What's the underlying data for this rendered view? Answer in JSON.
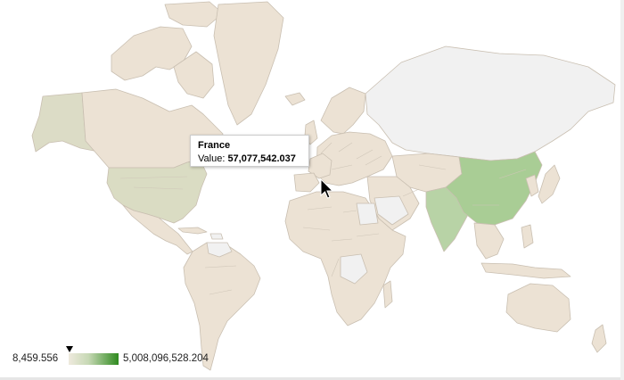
{
  "tooltip": {
    "country": "France",
    "value_label": "Value:",
    "value": "57,077,542.037"
  },
  "legend": {
    "min_label": "8,459.556",
    "max_label": "5,008,096,528.204",
    "min_value": 8459.556,
    "max_value": 5008096528.204,
    "marker_value": 57077542.037,
    "color_low": "#efeade",
    "color_high": "#2f8a1f"
  },
  "colors": {
    "no_data": "#f1f1f1",
    "low": "#ece2d4",
    "lower_mid": "#dcdcc6",
    "mid": "#bed5ad",
    "high": "#a9cd95",
    "land_stroke": "#c9bfb1"
  },
  "highlighted_regions": [
    {
      "name": "China",
      "color": "#a9cd95"
    },
    {
      "name": "India",
      "color": "#b8d3a6"
    },
    {
      "name": "United States",
      "color": "#dadcc3"
    },
    {
      "name": "Russia",
      "color": "#f1f1f1"
    }
  ]
}
